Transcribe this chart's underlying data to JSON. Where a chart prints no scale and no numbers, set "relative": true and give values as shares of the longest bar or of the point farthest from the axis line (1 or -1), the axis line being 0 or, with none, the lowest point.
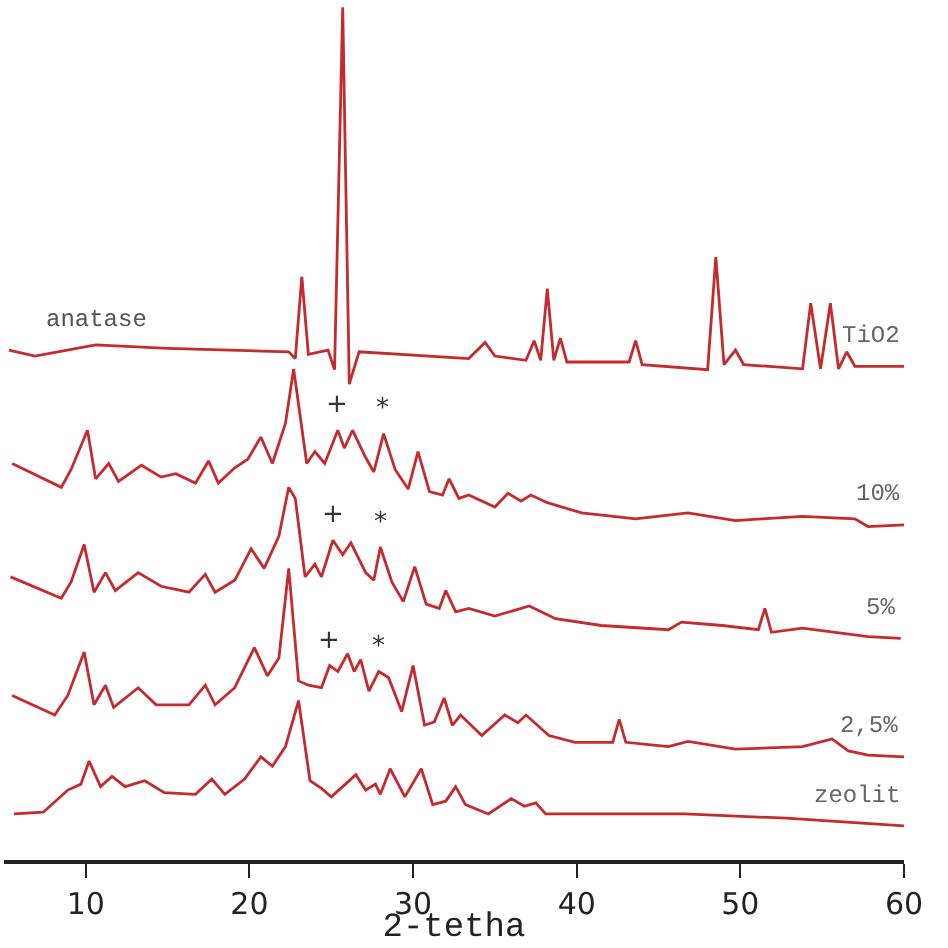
{
  "chart_data": {
    "type": "line",
    "relative": true,
    "xlabel": "2-tetha",
    "xlim": [
      5,
      60
    ],
    "xticks": [
      10,
      20,
      30,
      40,
      50,
      60
    ],
    "grid": false,
    "legend": false,
    "marker": "none",
    "line_style": "solid",
    "series": [
      {
        "name": "TiO2",
        "color": "#c42a2e",
        "x": [
          5.3,
          6.9,
          10.6,
          15,
          22.4,
          22.8,
          23.2,
          23.6,
          24.8,
          25.2,
          25.7,
          26.1,
          26.7,
          33.4,
          34.4,
          35,
          36.9,
          37.4,
          37.8,
          38.2,
          38.6,
          39.0,
          39.4,
          43.2,
          43.6,
          44.0,
          48.0,
          48.5,
          49.0,
          49.7,
          50.2,
          53.8,
          54.3,
          54.9,
          55.5,
          56.0,
          56.5,
          57.0,
          60
        ],
        "values": [
          0.598,
          0.591,
          0.604,
          0.6,
          0.596,
          0.588,
          0.684,
          0.593,
          0.598,
          0.575,
          1,
          0.558,
          0.596,
          0.588,
          0.607,
          0.591,
          0.586,
          0.609,
          0.586,
          0.67,
          0.586,
          0.612,
          0.584,
          0.584,
          0.609,
          0.581,
          0.575,
          0.707,
          0.581,
          0.598,
          0.581,
          0.576,
          0.653,
          0.576,
          0.653,
          0.576,
          0.596,
          0.579,
          0.579
        ]
      },
      {
        "name": "10%",
        "color": "#c42a2e",
        "x": [
          5.5,
          8.5,
          9.1,
          10.1,
          10.6,
          11.4,
          12,
          13.4,
          14.6,
          15.5,
          16.7,
          17.5,
          18.1,
          19.1,
          19.9,
          20.7,
          21.4,
          22.2,
          22.7,
          23.5,
          24,
          24.6,
          25.4,
          25.8,
          26.3,
          27.1,
          27.6,
          28.2,
          28.9,
          29.7,
          30.3,
          31,
          31.8,
          32.2,
          32.8,
          33.4,
          35,
          35.8,
          36.6,
          37.2,
          38.2,
          40.3,
          43.6,
          46.8,
          49.7,
          51.3,
          53.8,
          57,
          57.8,
          60
        ],
        "values": [
          0.465,
          0.437,
          0.458,
          0.504,
          0.447,
          0.465,
          0.444,
          0.463,
          0.449,
          0.453,
          0.442,
          0.468,
          0.442,
          0.46,
          0.47,
          0.496,
          0.465,
          0.512,
          0.576,
          0.465,
          0.479,
          0.465,
          0.504,
          0.483,
          0.504,
          0.472,
          0.455,
          0.5,
          0.458,
          0.435,
          0.479,
          0.432,
          0.428,
          0.447,
          0.424,
          0.428,
          0.414,
          0.43,
          0.421,
          0.428,
          0.419,
          0.407,
          0.4,
          0.407,
          0.398,
          0.4,
          0.403,
          0.4,
          0.391,
          0.393
        ]
      },
      {
        "name": "5%",
        "color": "#c42a2e",
        "x": [
          5.4,
          8.5,
          9.1,
          9.9,
          10.5,
          11.2,
          11.8,
          13.2,
          14.6,
          16.3,
          17.3,
          17.9,
          19.1,
          20.1,
          20.9,
          21.8,
          22.4,
          22.8,
          23.4,
          24.0,
          24.4,
          25.1,
          25.7,
          26.2,
          27.1,
          27.6,
          28.0,
          28.7,
          29.4,
          30.1,
          30.8,
          31.6,
          32,
          32.6,
          33.4,
          35,
          37.1,
          38.7,
          41.5,
          45.6,
          46.4,
          48.9,
          51.1,
          51.5,
          51.9,
          53.8,
          57.8,
          59.8
        ],
        "values": [
          0.332,
          0.307,
          0.326,
          0.37,
          0.314,
          0.337,
          0.316,
          0.337,
          0.321,
          0.314,
          0.335,
          0.314,
          0.328,
          0.365,
          0.342,
          0.38,
          0.437,
          0.424,
          0.332,
          0.347,
          0.332,
          0.375,
          0.358,
          0.372,
          0.337,
          0.328,
          0.367,
          0.326,
          0.303,
          0.344,
          0.3,
          0.295,
          0.316,
          0.291,
          0.295,
          0.286,
          0.298,
          0.283,
          0.275,
          0.27,
          0.279,
          0.275,
          0.27,
          0.295,
          0.267,
          0.272,
          0.262,
          0.26
        ]
      },
      {
        "name": "2,5%",
        "color": "#c42a2e",
        "x": [
          5.5,
          8.1,
          8.9,
          9.9,
          10.5,
          11.2,
          11.7,
          13.2,
          14.3,
          16.3,
          17.3,
          17.9,
          19.1,
          20.3,
          21.1,
          21.8,
          22.4,
          23.0,
          23.6,
          24.4,
          24.9,
          25.4,
          26.0,
          26.4,
          26.8,
          27.3,
          27.9,
          28.5,
          29.3,
          30.0,
          30.7,
          31.3,
          31.9,
          32.4,
          32.9,
          34.2,
          35.6,
          36.4,
          36.9,
          38.3,
          39.9,
          42.2,
          42.6,
          43.0,
          45.6,
          46.8,
          49.7,
          53.8,
          55.6,
          56.6,
          57.8,
          60
        ],
        "values": [
          0.193,
          0.17,
          0.193,
          0.244,
          0.182,
          0.205,
          0.179,
          0.202,
          0.182,
          0.182,
          0.205,
          0.182,
          0.202,
          0.249,
          0.216,
          0.237,
          0.342,
          0.21,
          0.205,
          0.202,
          0.228,
          0.221,
          0.242,
          0.221,
          0.235,
          0.198,
          0.221,
          0.214,
          0.174,
          0.228,
          0.158,
          0.162,
          0.19,
          0.158,
          0.17,
          0.146,
          0.17,
          0.161,
          0.17,
          0.146,
          0.138,
          0.138,
          0.165,
          0.138,
          0.133,
          0.139,
          0.13,
          0.133,
          0.142,
          0.128,
          0.123,
          0.121
        ]
      },
      {
        "name": "zeolit",
        "color": "#c42a2e",
        "x": [
          5.6,
          7.4,
          8.9,
          9.7,
          10.2,
          10.9,
          11.6,
          12.4,
          13.6,
          14.8,
          16.7,
          17.7,
          18.5,
          19.7,
          20.7,
          21.4,
          22.2,
          23.0,
          23.7,
          24.4,
          25.0,
          25.7,
          26.5,
          27.1,
          27.7,
          28.0,
          28.6,
          29.5,
          30.5,
          31.2,
          32,
          32.6,
          33.2,
          34.6,
          36.0,
          36.8,
          37.5,
          38.1,
          41.5,
          46.6,
          52.8,
          60
        ],
        "values": [
          0.054,
          0.056,
          0.082,
          0.089,
          0.116,
          0.086,
          0.098,
          0.086,
          0.093,
          0.079,
          0.077,
          0.095,
          0.077,
          0.095,
          0.121,
          0.11,
          0.133,
          0.187,
          0.093,
          0.084,
          0.074,
          0.086,
          0.1,
          0.082,
          0.089,
          0.077,
          0.107,
          0.074,
          0.107,
          0.065,
          0.069,
          0.086,
          0.065,
          0.054,
          0.072,
          0.063,
          0.067,
          0.054,
          0.054,
          0.054,
          0.049,
          0.04
        ]
      }
    ],
    "annotations": [
      {
        "text": "anatase",
        "x": 10.6,
        "y": 0.604
      },
      {
        "text": "+",
        "x": 25.4,
        "y": 0.504
      },
      {
        "text": "*",
        "x": 28.2,
        "y": 0.5
      },
      {
        "text": "+",
        "x": 25.1,
        "y": 0.375
      },
      {
        "text": "*",
        "x": 28.0,
        "y": 0.367
      },
      {
        "text": "+",
        "x": 24.9,
        "y": 0.228
      },
      {
        "text": "*",
        "x": 27.9,
        "y": 0.221
      }
    ]
  }
}
